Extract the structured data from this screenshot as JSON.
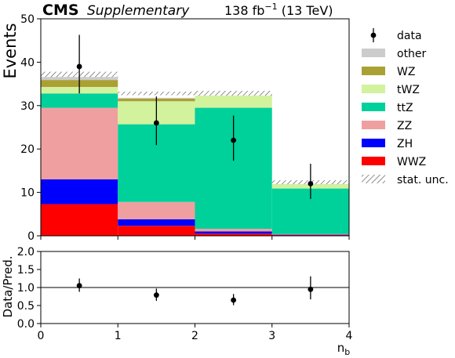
{
  "header": {
    "experiment": "CMS",
    "tag": "Supplementary",
    "lumi": "138 fb",
    "lumi_exp": "−1",
    "energy": " (13 TeV)"
  },
  "chart_data": [
    {
      "type": "stacked-histogram",
      "ylabel": "Events",
      "xlim": [
        0,
        4
      ],
      "ylim": [
        0,
        50
      ],
      "yticks": [
        "0",
        "10",
        "20",
        "30",
        "40",
        "50"
      ],
      "bins": [
        0,
        1,
        2,
        3,
        4
      ],
      "stack": [
        {
          "name": "WWZ",
          "color": "#ff0000",
          "values": [
            7.3,
            2.3,
            0.5,
            0.2
          ]
        },
        {
          "name": "ZH",
          "color": "#0000ff",
          "values": [
            5.7,
            1.5,
            0.5,
            0.1
          ]
        },
        {
          "name": "ZZ",
          "color": "#ef9f9f",
          "values": [
            16.5,
            4.0,
            0.6,
            0.1
          ]
        },
        {
          "name": "ttZ",
          "color": "#00d09a",
          "values": [
            3.3,
            17.9,
            27.9,
            10.5
          ]
        },
        {
          "name": "tWZ",
          "color": "#d2f29d",
          "values": [
            1.5,
            5.3,
            3.1,
            1.0
          ]
        },
        {
          "name": "WZ",
          "color": "#aba034",
          "values": [
            1.6,
            0.6,
            0.1,
            0.1
          ]
        },
        {
          "name": "other",
          "color": "#cccccc",
          "values": [
            0.8,
            0.2,
            0.1,
            0.1
          ]
        }
      ],
      "stat_unc": {
        "name": "stat. unc.",
        "low": [
          36.6,
          32.4,
          32.3,
          11.9
        ],
        "high": [
          37.8,
          33.2,
          33.4,
          12.8
        ]
      },
      "data": {
        "name": "data",
        "x": [
          0.5,
          1.5,
          2.5,
          3.5
        ],
        "y": [
          39,
          26,
          22,
          12
        ],
        "err_low": [
          6.2,
          5.1,
          4.7,
          3.5
        ],
        "err_high": [
          7.3,
          6.1,
          5.7,
          4.6
        ]
      },
      "legend_position": "right, outside plot"
    },
    {
      "type": "ratio",
      "ylabel": "Data/Pred.",
      "xlabel": "n",
      "xlabel_sub": "b",
      "xlim": [
        0,
        4
      ],
      "ylim": [
        0,
        2
      ],
      "xticks": [
        "0",
        "1",
        "2",
        "3",
        "4"
      ],
      "yticks": [
        "0.0",
        "0.5",
        "1.0",
        "1.5",
        "2.0"
      ],
      "reference_line": 1.0,
      "x": [
        0.5,
        1.5,
        2.5,
        3.5
      ],
      "y": [
        1.05,
        0.79,
        0.65,
        0.95
      ],
      "err_low": [
        0.17,
        0.16,
        0.14,
        0.28
      ],
      "err_high": [
        0.2,
        0.18,
        0.17,
        0.36
      ]
    }
  ]
}
